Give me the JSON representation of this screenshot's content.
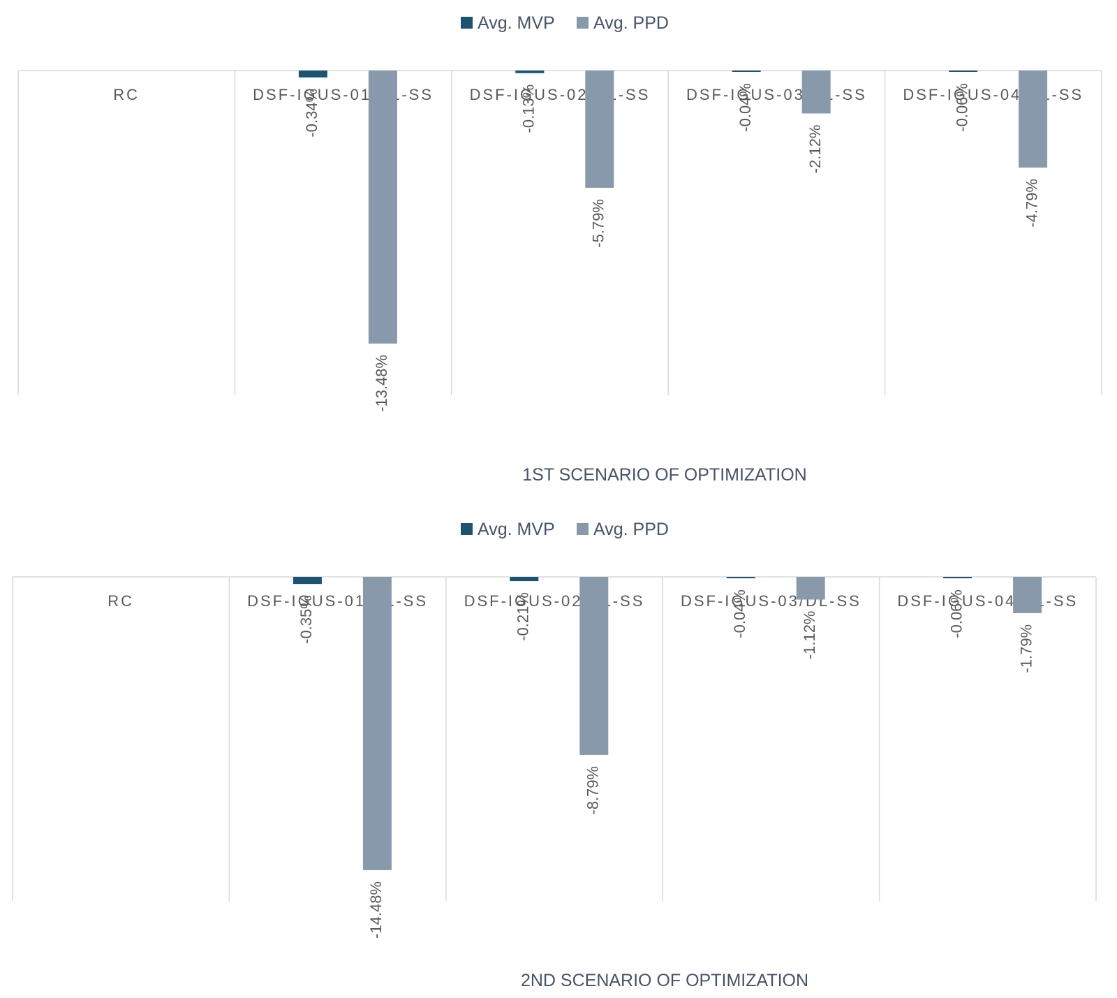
{
  "colors": {
    "mvp": "#1a5470",
    "ppd": "#8799ab",
    "gridline": "#d9d9d9",
    "text": "#595959"
  },
  "chart_data": [
    {
      "type": "bar",
      "orientation": "vertical",
      "xlabel": "1ST SCENARIO OF OPTIMIZATION",
      "categories": [
        "RC",
        "DSF-IGUS-01/DL-SS",
        "DSF-IGUS-02/DL-SS",
        "DSF-IGUS-03/DL-SS",
        "DSF-IGUS-04/DL-SS"
      ],
      "series": [
        {
          "name": "Avg. MVP",
          "values": [
            0,
            -0.34,
            -0.13,
            -0.04,
            -0.06
          ],
          "labels": [
            "",
            "-0.34%",
            "-0.13%",
            "-0.04%",
            "-0.06%"
          ],
          "color": "#1a5470"
        },
        {
          "name": "Avg. PPD",
          "values": [
            0,
            -13.48,
            -5.79,
            -2.12,
            -4.79
          ],
          "labels": [
            "",
            "-13.48%",
            "-5.79%",
            "-2.12%",
            "-4.79%"
          ],
          "color": "#8799ab"
        }
      ],
      "ylim": [
        -16,
        0
      ],
      "legend": "top-center",
      "grid": "vertical category separators"
    },
    {
      "type": "bar",
      "orientation": "vertical",
      "xlabel": "2ND SCENARIO OF OPTIMIZATION",
      "categories": [
        "RC",
        "DSF-IGUS-01/DL-SS",
        "DSF-IGUS-02/DL-SS",
        "DSF-IGUS-03/DL-SS",
        "DSF-IGUS-04/DL-SS"
      ],
      "series": [
        {
          "name": "Avg. MVP",
          "values": [
            0,
            -0.35,
            -0.21,
            -0.04,
            -0.06
          ],
          "labels": [
            "",
            "-0.35%",
            "-0.21%",
            "-0.04%",
            "-0.06%"
          ],
          "color": "#1a5470"
        },
        {
          "name": "Avg. PPD",
          "values": [
            0,
            -14.48,
            -8.79,
            -1.12,
            -1.79
          ],
          "labels": [
            "",
            "-14.48%",
            "-8.79%",
            "-1.12%",
            "-1.79%"
          ],
          "color": "#8799ab"
        }
      ],
      "ylim": [
        -16,
        0
      ],
      "legend": "top-center",
      "grid": "vertical category separators"
    }
  ]
}
